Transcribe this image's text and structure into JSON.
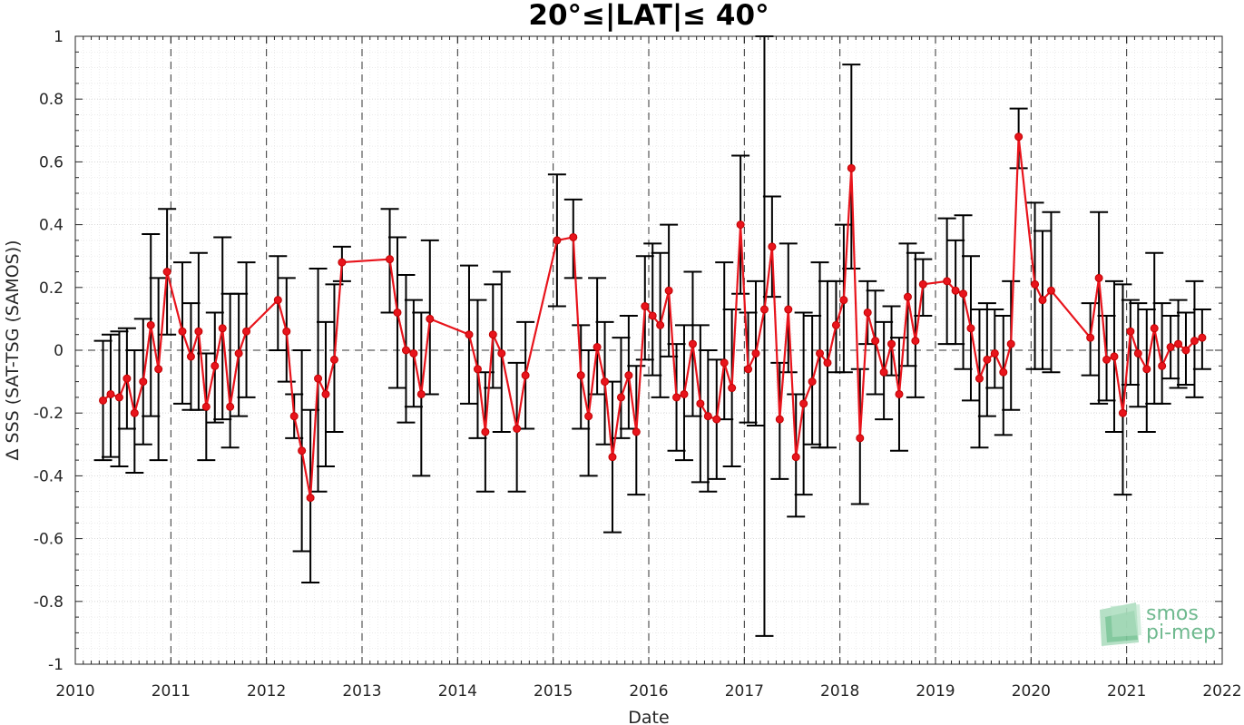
{
  "chart_data": {
    "type": "line",
    "title": "20°≤|LAT|≤ 40°",
    "xlabel": "Date",
    "ylabel": "Δ SSS (SAT-TSG (SAMOS))",
    "xlim": [
      2010,
      2022
    ],
    "ylim": [
      -1,
      1
    ],
    "x_ticks": [
      "2010",
      "2011",
      "2012",
      "2013",
      "2014",
      "2015",
      "2016",
      "2017",
      "2018",
      "2019",
      "2020",
      "2021",
      "2022"
    ],
    "y_ticks": [
      "-1",
      "-0.8",
      "-0.6",
      "-0.4",
      "-0.2",
      "0",
      "0.2",
      "0.4",
      "0.6",
      "0.8",
      "1"
    ],
    "grid": true,
    "minor_grid": true,
    "year_reference_lines": "dashed",
    "zero_reference_line": "dashed",
    "series": [
      {
        "color": "#e8141c",
        "errorbar_color": "#000000",
        "x": [
          2010.29,
          2010.37,
          2010.46,
          2010.54,
          2010.62,
          2010.71,
          2010.79,
          2010.87,
          2010.96,
          2011.12,
          2011.21,
          2011.29,
          2011.37,
          2011.46,
          2011.54,
          2011.62,
          2011.71,
          2011.79,
          2012.12,
          2012.21,
          2012.29,
          2012.37,
          2012.46,
          2012.54,
          2012.62,
          2012.71,
          2012.79,
          2013.29,
          2013.37,
          2013.46,
          2013.54,
          2013.62,
          2013.71,
          2014.12,
          2014.21,
          2014.29,
          2014.37,
          2014.46,
          2014.62,
          2014.71,
          2015.04,
          2015.21,
          2015.29,
          2015.37,
          2015.46,
          2015.54,
          2015.62,
          2015.71,
          2015.79,
          2015.87,
          2015.96,
          2016.04,
          2016.12,
          2016.21,
          2016.29,
          2016.37,
          2016.46,
          2016.54,
          2016.62,
          2016.71,
          2016.79,
          2016.87,
          2016.96,
          2017.04,
          2017.12,
          2017.21,
          2017.29,
          2017.37,
          2017.46,
          2017.54,
          2017.62,
          2017.71,
          2017.79,
          2017.87,
          2017.96,
          2018.04,
          2018.12,
          2018.21,
          2018.29,
          2018.37,
          2018.46,
          2018.54,
          2018.62,
          2018.71,
          2018.79,
          2018.87,
          2019.12,
          2019.21,
          2019.29,
          2019.37,
          2019.46,
          2019.54,
          2019.62,
          2019.71,
          2019.79,
          2019.87,
          2020.04,
          2020.12,
          2020.21,
          2020.62,
          2020.71,
          2020.79,
          2020.87,
          2020.96,
          2021.04,
          2021.12,
          2021.21,
          2021.29,
          2021.37,
          2021.46,
          2021.54,
          2021.62,
          2021.71,
          2021.79
        ],
        "values": [
          -0.16,
          -0.14,
          -0.15,
          -0.09,
          -0.2,
          -0.1,
          0.08,
          -0.06,
          0.25,
          0.06,
          -0.02,
          0.06,
          -0.18,
          -0.05,
          0.07,
          -0.18,
          -0.01,
          0.06,
          0.16,
          0.06,
          -0.21,
          -0.32,
          -0.47,
          -0.09,
          -0.14,
          -0.03,
          0.28,
          0.29,
          0.12,
          0.0,
          -0.01,
          -0.14,
          0.1,
          0.05,
          -0.06,
          -0.26,
          0.05,
          -0.01,
          -0.25,
          -0.08,
          0.35,
          0.36,
          -0.08,
          -0.21,
          0.01,
          -0.1,
          -0.34,
          -0.15,
          -0.08,
          -0.26,
          0.14,
          0.11,
          0.08,
          0.19,
          -0.15,
          -0.14,
          0.02,
          -0.17,
          -0.21,
          -0.22,
          -0.04,
          -0.12,
          0.4,
          -0.06,
          -0.01,
          0.13,
          0.33,
          -0.22,
          0.13,
          -0.34,
          -0.17,
          -0.1,
          -0.01,
          -0.04,
          0.08,
          0.16,
          0.58,
          -0.28,
          0.12,
          0.03,
          -0.07,
          0.02,
          -0.14,
          0.17,
          0.03,
          0.21,
          0.22,
          0.19,
          0.18,
          0.07,
          -0.09,
          -0.03,
          -0.01,
          -0.07,
          0.02,
          0.68,
          0.21,
          0.16,
          0.19,
          0.04,
          0.23,
          -0.03,
          -0.02,
          -0.2,
          0.06,
          -0.01,
          -0.06,
          0.07,
          -0.05,
          0.01,
          0.02,
          0.0,
          0.03,
          0.04
        ],
        "err_low": [
          -0.35,
          -0.34,
          -0.37,
          -0.25,
          -0.39,
          -0.3,
          -0.21,
          -0.35,
          0.05,
          -0.17,
          -0.19,
          -0.19,
          -0.35,
          -0.23,
          -0.22,
          -0.31,
          -0.21,
          -0.15,
          0.0,
          -0.1,
          -0.28,
          -0.64,
          -0.74,
          -0.45,
          -0.37,
          -0.26,
          0.22,
          0.12,
          -0.12,
          -0.23,
          -0.18,
          -0.4,
          -0.14,
          -0.17,
          -0.28,
          -0.45,
          -0.12,
          -0.26,
          -0.45,
          -0.25,
          0.14,
          0.23,
          -0.25,
          -0.4,
          -0.14,
          -0.3,
          -0.58,
          -0.28,
          -0.25,
          -0.46,
          -0.03,
          -0.08,
          -0.15,
          -0.02,
          -0.32,
          -0.35,
          -0.21,
          -0.42,
          -0.45,
          -0.41,
          -0.22,
          -0.37,
          0.18,
          -0.23,
          -0.24,
          -0.91,
          0.17,
          -0.41,
          -0.07,
          -0.53,
          -0.46,
          -0.3,
          -0.31,
          -0.31,
          -0.07,
          -0.07,
          0.26,
          -0.49,
          0.02,
          -0.14,
          -0.22,
          -0.08,
          -0.32,
          -0.05,
          -0.15,
          0.11,
          0.02,
          0.02,
          -0.06,
          -0.16,
          -0.31,
          -0.21,
          -0.12,
          -0.27,
          -0.19,
          0.58,
          -0.06,
          -0.06,
          -0.07,
          -0.08,
          -0.17,
          -0.16,
          -0.26,
          -0.46,
          -0.11,
          -0.18,
          -0.26,
          -0.17,
          -0.17,
          -0.09,
          -0.12,
          -0.11,
          -0.15,
          -0.06
        ],
        "err_high": [
          0.03,
          0.05,
          0.06,
          0.07,
          0.0,
          0.1,
          0.37,
          0.23,
          0.45,
          0.28,
          0.15,
          0.31,
          -0.01,
          0.12,
          0.36,
          0.18,
          0.18,
          0.28,
          0.3,
          0.23,
          -0.14,
          0.0,
          -0.19,
          0.26,
          0.09,
          0.21,
          0.33,
          0.45,
          0.36,
          0.24,
          0.16,
          0.12,
          0.35,
          0.27,
          0.16,
          -0.07,
          0.21,
          0.25,
          -0.04,
          0.09,
          0.56,
          0.48,
          0.08,
          0.0,
          0.23,
          0.09,
          -0.1,
          0.04,
          0.11,
          -0.05,
          0.3,
          0.34,
          0.31,
          0.4,
          0.02,
          0.08,
          0.25,
          0.08,
          0.0,
          -0.03,
          0.28,
          0.13,
          0.62,
          0.12,
          0.22,
          1.0,
          0.49,
          -0.04,
          0.34,
          -0.14,
          0.12,
          0.11,
          0.28,
          0.22,
          0.22,
          0.4,
          0.91,
          -0.06,
          0.22,
          0.19,
          0.09,
          0.14,
          0.04,
          0.34,
          0.31,
          0.29,
          0.42,
          0.35,
          0.43,
          0.3,
          0.13,
          0.15,
          0.13,
          0.11,
          0.22,
          0.77,
          0.47,
          0.38,
          0.44,
          0.15,
          0.44,
          0.11,
          0.22,
          0.21,
          0.16,
          0.15,
          0.13,
          0.31,
          0.15,
          0.11,
          0.16,
          0.12,
          0.22,
          0.13
        ]
      }
    ]
  },
  "logo": {
    "line1": "smos",
    "line2": "pi-mep"
  }
}
